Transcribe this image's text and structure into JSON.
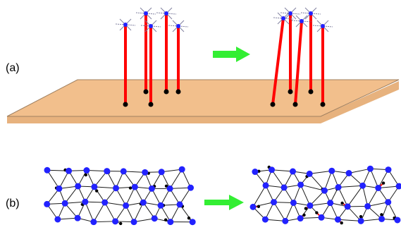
{
  "labels": {
    "a": "(a)",
    "b": "(b)"
  },
  "colors": {
    "substrate_top": "#f2bf8c",
    "substrate_edge": "#a08060",
    "substrate_side": "#e7b27e",
    "rod": "#ff0000",
    "node": "#2222ff",
    "bond": "#1a1a1a",
    "anchor": "#000000",
    "arrow": "#33ee33",
    "crossbar": "#8080a0"
  },
  "icons": {
    "arrow_a": "right-arrow-icon",
    "arrow_b": "right-arrow-icon"
  }
}
